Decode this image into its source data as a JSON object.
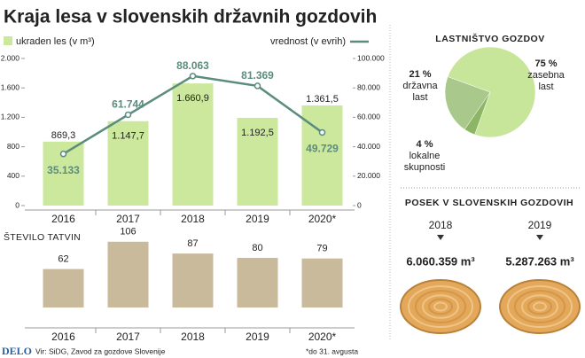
{
  "title": "Kraja lesa v slovenskih državnih gozdovih",
  "chart_data": [
    {
      "type": "bar",
      "categories": [
        "2016",
        "2017",
        "2018",
        "2019",
        "2020*"
      ],
      "series": [
        {
          "name": "ukraden les (v m³)",
          "type": "bar",
          "color": "#cbe89c",
          "values": [
            869.3,
            1147.7,
            1660.9,
            1192.5,
            1361.5
          ],
          "value_labels": [
            "869,3",
            "1.147,7",
            "1.660,9",
            "1.192,5",
            "1.361,5"
          ]
        },
        {
          "name": "vrednost (v evrih)",
          "type": "line",
          "axis": "y2",
          "color": "#5b8c7e",
          "values": [
            35133,
            61744,
            88063,
            81369,
            49729
          ],
          "value_labels": [
            "35.133",
            "61.744",
            "88.063",
            "81.369",
            "49.729"
          ]
        }
      ],
      "ylim": [
        0,
        2000
      ],
      "yticks": [
        0,
        400,
        800,
        {
          "value": 1200,
          "label": "1.200"
        },
        {
          "value": 1600,
          "label": "1.600"
        },
        {
          "value": 2000,
          "label": "2.000"
        }
      ],
      "y2lim": [
        0,
        100000
      ],
      "y2ticks": [
        0,
        {
          "value": 20000,
          "label": "20.000"
        },
        {
          "value": 40000,
          "label": "40.000"
        },
        {
          "value": 60000,
          "label": "60.000"
        },
        {
          "value": 80000,
          "label": "80.000"
        },
        {
          "value": 100000,
          "label": "100.000"
        }
      ]
    },
    {
      "type": "bar",
      "title": "ŠTEVILO TATVIN",
      "categories": [
        "2016",
        "2017",
        "2018",
        "2019",
        "2020*"
      ],
      "color": "#c9ba9c",
      "values": [
        62,
        106,
        87,
        80,
        79
      ]
    },
    {
      "type": "pie",
      "title": "LASTNIŠTVO GOZDOV",
      "categories": [
        "zasebna last",
        "lokalne skupnosti",
        "državna last"
      ],
      "values": [
        75,
        4,
        21
      ],
      "value_labels": [
        "75 %",
        "4 %",
        "21 %"
      ],
      "colors": [
        "#c8e69a",
        "#8db566",
        "#a9c98c"
      ]
    }
  ],
  "posek": {
    "title": "POSEK V SLOVENSKIH GOZDOVIH",
    "items": [
      {
        "year": "2018",
        "amount": "6.060.359 m³"
      },
      {
        "year": "2019",
        "amount": "5.287.263 m³"
      }
    ]
  },
  "footer": {
    "brand": "DELO",
    "source": "Vir: SiDG, Zavod za gozdove Slovenije",
    "note": "*do 31. avgusta"
  }
}
